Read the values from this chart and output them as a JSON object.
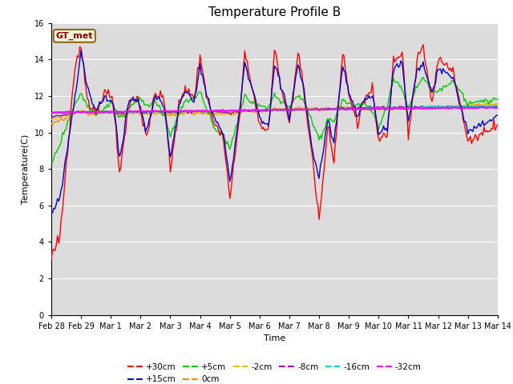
{
  "title": "Temperature Profile B",
  "xlabel": "Time",
  "ylabel": "Temperature(C)",
  "ylim": [
    0,
    16
  ],
  "background_color": "#dcdcdc",
  "figure_color": "#ffffff",
  "annotation_text": "GT_met",
  "annotation_color": "#8b0000",
  "annotation_bg": "#f5f5dc",
  "annotation_edge": "#8b6914",
  "series": {
    "+30cm": {
      "color": "#ff0000",
      "lw": 1.0
    },
    "+15cm": {
      "color": "#0000cc",
      "lw": 1.0
    },
    "+5cm": {
      "color": "#00cc00",
      "lw": 1.0
    },
    "0cm": {
      "color": "#ff8800",
      "lw": 1.0
    },
    "-2cm": {
      "color": "#cccc00",
      "lw": 1.0
    },
    "-8cm": {
      "color": "#9900cc",
      "lw": 1.0
    },
    "-16cm": {
      "color": "#00cccc",
      "lw": 1.2
    },
    "-32cm": {
      "color": "#ff00ff",
      "lw": 1.5
    }
  },
  "xtick_labels": [
    "Feb 28",
    "Feb 29",
    "Mar 1",
    "Mar 2",
    "Mar 3",
    "Mar 4",
    "Mar 5",
    "Mar 6",
    "Mar 7",
    "Mar 8",
    "Mar 9",
    "Mar 10",
    "Mar 11",
    "Mar 12",
    "Mar 13",
    "Mar 14"
  ],
  "ytick_labels": [
    "0",
    "2",
    "4",
    "6",
    "8",
    "10",
    "12",
    "14",
    "16"
  ],
  "yticks": [
    0,
    2,
    4,
    6,
    8,
    10,
    12,
    14,
    16
  ],
  "title_fontsize": 11,
  "tick_fontsize": 7,
  "label_fontsize": 8,
  "legend_order": [
    "+30cm",
    "+15cm",
    "+5cm",
    "0cm",
    "-2cm",
    "-8cm",
    "-16cm",
    "-32cm"
  ],
  "legend_ncol_row1": 6,
  "legend_ncol_row2": 2
}
